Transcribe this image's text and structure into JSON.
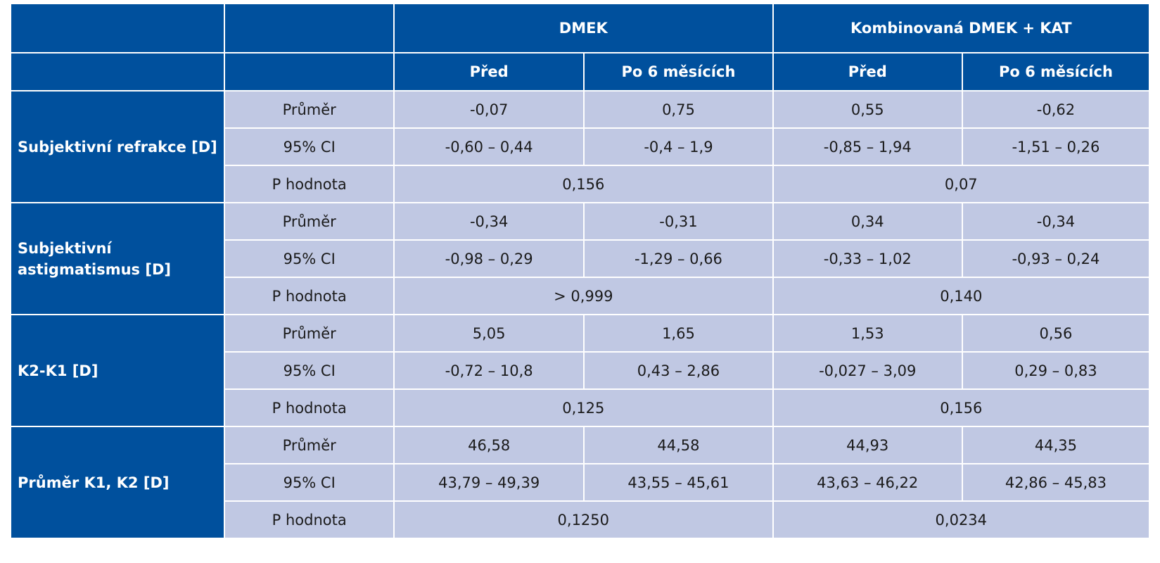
{
  "header": {
    "groups": [
      "DMEK",
      "Kombinovaná DMEK + KAT"
    ],
    "subheaders": [
      "Před",
      "Po 6 měsících",
      "Před",
      "Po 6 měsících"
    ]
  },
  "sections": [
    {
      "label": "Subjektivní  refrakce [D]",
      "rows": [
        {
          "stat": "Průměr",
          "values": [
            "-0,07",
            "0,75",
            "0,55",
            "-0,62"
          ]
        },
        {
          "stat": "95% CI",
          "values": [
            "-0,60 – 0,44",
            "-0,4 – 1,9",
            "-0,85 – 1,94",
            "-1,51 – 0,26"
          ]
        }
      ],
      "p": {
        "stat": "P hodnota",
        "values": [
          "0,156",
          "0,07"
        ]
      }
    },
    {
      "label": "Subjektivní astigmatismus [D]",
      "rows": [
        {
          "stat": "Průměr",
          "values": [
            "-0,34",
            "-0,31",
            "0,34",
            "-0,34"
          ]
        },
        {
          "stat": "95% CI",
          "values": [
            "-0,98 – 0,29",
            "-1,29 – 0,66",
            "-0,33 – 1,02",
            "-0,93 – 0,24"
          ]
        }
      ],
      "p": {
        "stat": "P hodnota",
        "values": [
          "> 0,999",
          "0,140"
        ]
      }
    },
    {
      "label": "K2-K1 [D]",
      "rows": [
        {
          "stat": "Průměr",
          "values": [
            "5,05",
            "1,65",
            "1,53",
            "0,56"
          ]
        },
        {
          "stat": "95% CI",
          "values": [
            "-0,72 – 10,8",
            "0,43 – 2,86",
            "-0,027 – 3,09",
            "0,29 – 0,83"
          ]
        }
      ],
      "p": {
        "stat": "P hodnota",
        "values": [
          "0,125",
          "0,156"
        ]
      }
    },
    {
      "label": "Průměr K1, K2 [D]",
      "rows": [
        {
          "stat": "Průměr",
          "values": [
            "46,58",
            "44,58",
            "44,93",
            "44,35"
          ]
        },
        {
          "stat": "95% CI",
          "values": [
            "43,79 – 49,39",
            "43,55 – 45,61",
            "43,63 – 46,22",
            "42,86 – 45,83"
          ]
        }
      ],
      "p": {
        "stat": "P hodnota",
        "values": [
          "0,1250",
          "0,0234"
        ]
      }
    }
  ]
}
